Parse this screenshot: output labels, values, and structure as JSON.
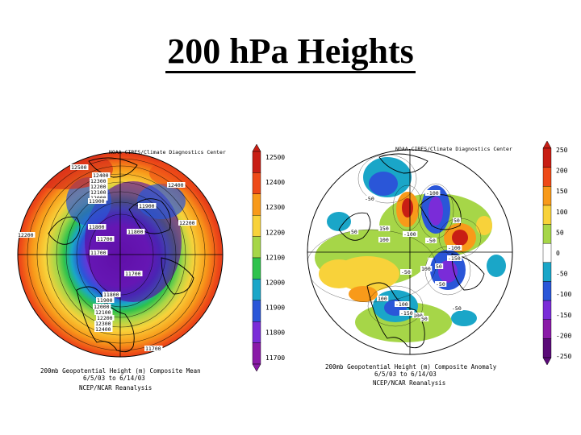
{
  "title": "200 hPa Heights",
  "left_map": {
    "credit": "NOAA-CIRES/Climate Diagnostics Center",
    "caption_line1": "200mb Geopotential Height (m) Composite Mean",
    "caption_line2": "6/5/03  to 6/14/03",
    "caption_line3": "NCEP/NCAR Reanalysis",
    "colorbar_labels": [
      "12500",
      "12400",
      "12300",
      "12200",
      "12100",
      "12000",
      "11900",
      "11800",
      "11700"
    ],
    "colorbar_colors": [
      "#c81e14",
      "#ee4a18",
      "#f89a1a",
      "#f8d23a",
      "#a6d648",
      "#2ec24c",
      "#1aa6c8",
      "#2a56d8",
      "#7a2cd8",
      "#8a1aa8"
    ],
    "contour_labels": [
      {
        "text": "12500"
      },
      {
        "text": "12400"
      },
      {
        "text": "12300"
      },
      {
        "text": "12200"
      },
      {
        "text": "12100"
      },
      {
        "text": "12000"
      },
      {
        "text": "11900"
      },
      {
        "text": "11900"
      },
      {
        "text": "11800"
      },
      {
        "text": "11800"
      },
      {
        "text": "11700"
      },
      {
        "text": "11700"
      },
      {
        "text": "11700"
      },
      {
        "text": "11800"
      },
      {
        "text": "11900"
      },
      {
        "text": "12000"
      },
      {
        "text": "12100"
      },
      {
        "text": "12200"
      },
      {
        "text": "12300"
      },
      {
        "text": "12400"
      },
      {
        "text": "12400"
      },
      {
        "text": "12200"
      },
      {
        "text": "12200"
      },
      {
        "text": "11700"
      }
    ]
  },
  "right_map": {
    "credit": "NOAA-CIRES/Climate Diagnostics Center",
    "caption_line1": "200mb Geopotential Height (m) Composite Anomaly",
    "caption_line2": "6/5/03  to 6/14/03",
    "caption_line3": "NCEP/NCAR Reanalysis",
    "colorbar_labels": [
      "250",
      "200",
      "150",
      "100",
      "50",
      "0",
      "-50",
      "-100",
      "-150",
      "-200",
      "-250"
    ],
    "colorbar_colors": [
      "#c81e14",
      "#ee4a18",
      "#f89a1a",
      "#f8d23a",
      "#a6d648",
      "#ffffff",
      "#1aa6c8",
      "#2a56d8",
      "#7a2cd8",
      "#8a1aa8",
      "#5a0a78"
    ],
    "contour_labels": [
      {
        "text": "50"
      },
      {
        "text": "-50"
      },
      {
        "text": "100"
      },
      {
        "text": "150"
      },
      {
        "text": "-100"
      },
      {
        "text": "-50"
      },
      {
        "text": "50"
      },
      {
        "text": "-100"
      },
      {
        "text": "-150"
      },
      {
        "text": "100"
      },
      {
        "text": "-50"
      },
      {
        "text": "-100"
      },
      {
        "text": "100"
      },
      {
        "text": "50"
      },
      {
        "text": "-50"
      },
      {
        "text": "100"
      },
      {
        "text": "-150"
      },
      {
        "text": "-100"
      },
      {
        "text": "50"
      },
      {
        "text": "-50"
      }
    ]
  }
}
